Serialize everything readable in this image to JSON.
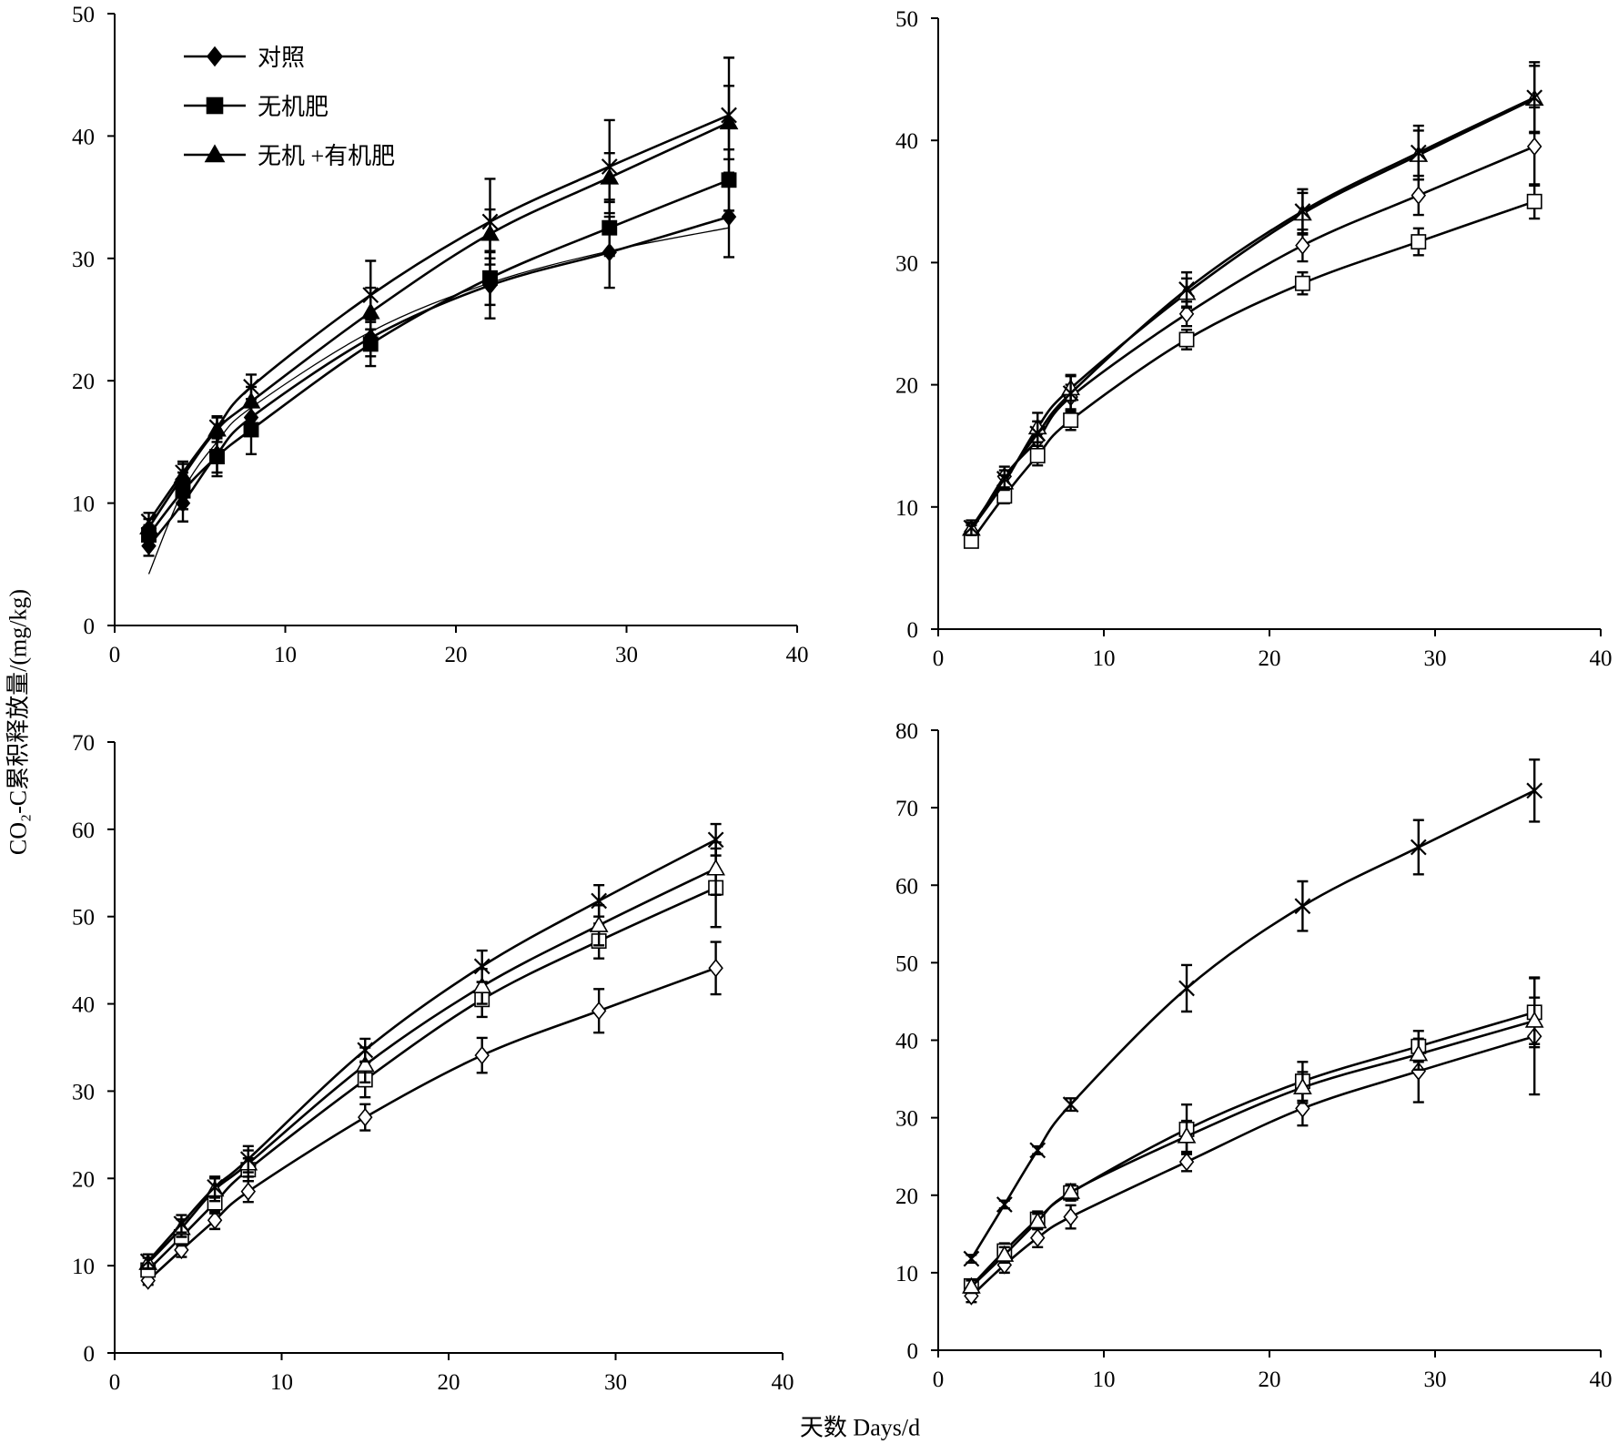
{
  "figure": {
    "ylabel": "CO₂-C累积释放量/(mg/kg)",
    "xlabel": "天数 Days/d"
  },
  "chart_data": [
    {
      "type": "line",
      "xlim": [
        0,
        40
      ],
      "ylim": [
        0,
        50
      ],
      "xticks": [
        0,
        10,
        20,
        30,
        40
      ],
      "yticks": [
        0,
        10,
        20,
        30,
        40,
        50
      ],
      "legend_position": "top-left",
      "x": [
        2,
        4,
        6,
        8,
        15,
        22,
        29,
        36
      ],
      "series": [
        {
          "name": "对照",
          "marker": "diamond-filled",
          "in_legend": true,
          "values": [
            6.5,
            10,
            14,
            17,
            23.5,
            27.8,
            30.5,
            33.4
          ],
          "errors": [
            0.8,
            1.5,
            1.5,
            1.5,
            1.5,
            2.7,
            2.9,
            3.3
          ]
        },
        {
          "name": "无机肥",
          "marker": "square-filled",
          "in_legend": true,
          "values": [
            7.4,
            11,
            13.8,
            16,
            23,
            28.4,
            32.5,
            36.4
          ],
          "errors": [
            0.8,
            1.5,
            1.6,
            2,
            1.8,
            2.2,
            2.3,
            2.5
          ]
        },
        {
          "name": "无机 +有机肥",
          "marker": "triangle-filled",
          "in_legend": true,
          "values": [
            8,
            12.2,
            16,
            18.3,
            25.6,
            32,
            36.6,
            41.1
          ],
          "errors": [
            0.7,
            1,
            1,
            1.2,
            2,
            2,
            2,
            3
          ]
        },
        {
          "name": "",
          "marker": "x",
          "in_legend": false,
          "values": [
            8.5,
            12.5,
            16.2,
            19.5,
            27,
            33,
            37.5,
            41.7
          ],
          "errors": [
            0.7,
            0.9,
            0.9,
            1,
            2.8,
            3.5,
            3.8,
            4.7
          ]
        }
      ],
      "thin_curve": {
        "x": [
          2,
          4,
          6,
          8,
          15,
          22,
          29,
          36
        ],
        "values": [
          4.2,
          11,
          15,
          17.8,
          24,
          28,
          30.6,
          32.5
        ]
      }
    },
    {
      "type": "line",
      "xlim": [
        0,
        40
      ],
      "ylim": [
        0,
        50
      ],
      "xticks": [
        0,
        10,
        20,
        30,
        40
      ],
      "yticks": [
        0,
        10,
        20,
        30,
        40,
        50
      ],
      "x": [
        2,
        4,
        6,
        8,
        15,
        22,
        29,
        36
      ],
      "series": [
        {
          "marker": "diamond-open",
          "values": [
            8,
            12.5,
            15.5,
            19,
            25.8,
            31.4,
            35.5,
            39.5
          ],
          "errors": [
            0.5,
            0.8,
            1,
            1,
            1,
            1.3,
            1.6,
            3.2
          ]
        },
        {
          "marker": "square-open",
          "values": [
            7.2,
            10.9,
            14.2,
            17.1,
            23.7,
            28.3,
            31.7,
            35
          ],
          "errors": [
            0.5,
            0.6,
            0.8,
            0.8,
            0.8,
            0.9,
            1.1,
            1.4
          ]
        },
        {
          "marker": "triangle-open",
          "values": [
            8.2,
            12,
            16.5,
            19.7,
            27.5,
            34,
            38.8,
            43.4
          ],
          "errors": [
            0.5,
            0.6,
            1.2,
            1,
            1.2,
            1.7,
            2,
            2.7
          ]
        },
        {
          "marker": "x",
          "values": [
            8.3,
            12.3,
            16,
            19.3,
            27.8,
            34.2,
            39,
            43.5
          ],
          "errors": [
            0.6,
            0.7,
            1,
            1.5,
            1.4,
            1.8,
            2.2,
            2.9
          ]
        }
      ]
    },
    {
      "type": "line",
      "xlim": [
        0,
        40
      ],
      "ylim": [
        0,
        70
      ],
      "xticks": [
        0,
        10,
        20,
        30,
        40
      ],
      "yticks": [
        0,
        10,
        20,
        30,
        40,
        50,
        60,
        70
      ],
      "x": [
        2,
        4,
        6,
        8,
        15,
        22,
        29,
        36
      ],
      "series": [
        {
          "marker": "diamond-open",
          "values": [
            8.3,
            11.8,
            15.2,
            18.5,
            27,
            34.1,
            39.2,
            44.1
          ],
          "errors": [
            0.5,
            0.8,
            1,
            1.2,
            1.5,
            2,
            2.5,
            3
          ]
        },
        {
          "marker": "square-open",
          "values": [
            9.5,
            13.3,
            17.2,
            21,
            31.3,
            40.5,
            47.2,
            53.3
          ],
          "errors": [
            0.6,
            1,
            1.2,
            1.3,
            2,
            2,
            2,
            4.5
          ]
        },
        {
          "marker": "triangle-open",
          "values": [
            10.3,
            14.3,
            18.7,
            21.7,
            33,
            42,
            49,
            55.5
          ],
          "errors": [
            0.6,
            1,
            1.3,
            1.5,
            2,
            2,
            2.3,
            3
          ]
        },
        {
          "marker": "x",
          "values": [
            10.5,
            14.8,
            19,
            22.2,
            34.7,
            44.3,
            51.8,
            58.8
          ],
          "errors": [
            0.8,
            1,
            1.2,
            1.5,
            1.3,
            1.8,
            1.8,
            1.8
          ]
        }
      ]
    },
    {
      "type": "line",
      "xlim": [
        0,
        40
      ],
      "ylim": [
        0,
        80
      ],
      "xticks": [
        0,
        10,
        20,
        30,
        40
      ],
      "yticks": [
        0,
        10,
        20,
        30,
        40,
        50,
        60,
        70,
        80
      ],
      "x": [
        2,
        4,
        6,
        8,
        15,
        22,
        29,
        36
      ],
      "series": [
        {
          "marker": "diamond-open",
          "values": [
            7,
            11,
            14.5,
            17.2,
            24.3,
            31.2,
            36,
            40.5
          ],
          "errors": [
            0.8,
            1,
            1.2,
            1.5,
            1.2,
            2.2,
            4,
            7.5
          ]
        },
        {
          "marker": "square-open",
          "values": [
            8.3,
            12.8,
            16.9,
            20.3,
            28.5,
            34.7,
            39.2,
            43.6
          ],
          "errors": [
            0.8,
            1,
            1,
            1,
            3.2,
            2.5,
            2,
            4.5
          ]
        },
        {
          "marker": "triangle-open",
          "values": [
            8.2,
            12.3,
            16.6,
            20.4,
            27.6,
            33.9,
            38.2,
            42.5
          ],
          "errors": [
            0.8,
            1,
            1,
            1,
            2,
            2,
            2,
            3
          ]
        },
        {
          "marker": "x",
          "values": [
            11.8,
            18.8,
            25.8,
            31.7,
            46.7,
            57.3,
            64.9,
            72.2
          ],
          "errors": [
            0.5,
            0.5,
            0.5,
            0.8,
            3,
            3.2,
            3.5,
            4
          ]
        }
      ]
    }
  ]
}
